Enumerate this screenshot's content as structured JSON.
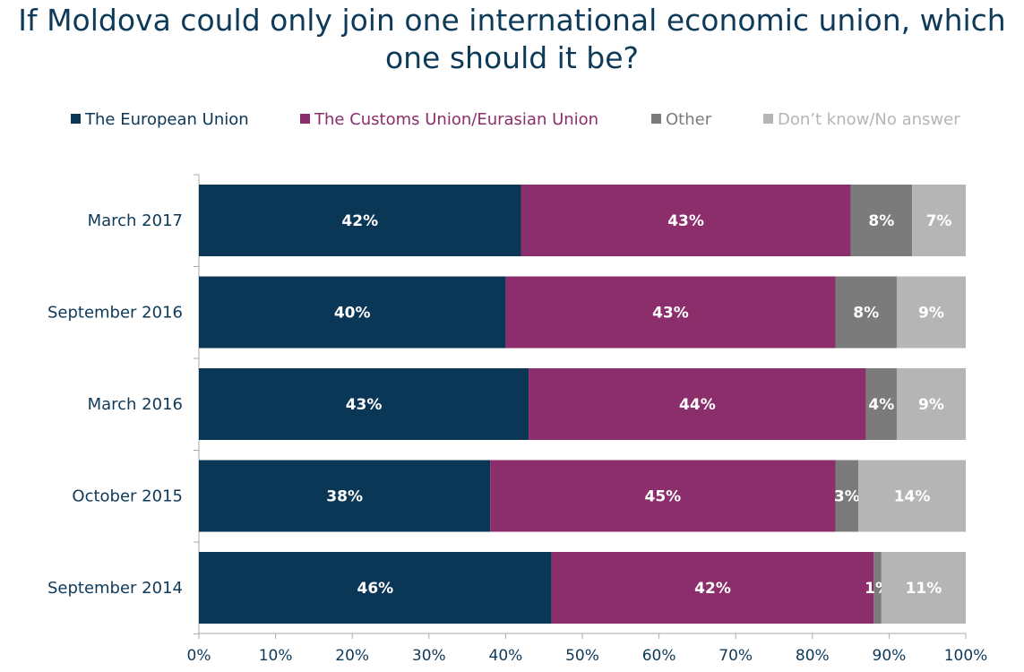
{
  "chart_data": {
    "type": "bar",
    "orientation": "horizontal",
    "stacked": true,
    "title": "If Moldova could only join one international economic union, which one should it be?",
    "categories": [
      "March 2017",
      "September 2016",
      "March 2016",
      "October 2015",
      "September 2014"
    ],
    "series": [
      {
        "name": "The European Union",
        "color": "#0b3756",
        "legend_text_color": "#0b3756",
        "values": [
          42,
          40,
          43,
          38,
          46
        ],
        "labels": [
          "42%",
          "40%",
          "43%",
          "38%",
          "46%"
        ]
      },
      {
        "name": "The Customs Union/Eurasian Union",
        "color": "#8b2e6b",
        "legend_text_color": "#8b2e6b",
        "values": [
          43,
          43,
          44,
          45,
          42
        ],
        "labels": [
          "43%",
          "43%",
          "44%",
          "45%",
          "42%"
        ]
      },
      {
        "name": "Other",
        "color": "#7b7b7b",
        "legend_text_color": "#7b7b7b",
        "values": [
          8,
          8,
          4,
          3,
          1
        ],
        "labels": [
          "8%",
          "8%",
          "4%",
          "3%",
          "1%"
        ]
      },
      {
        "name": "Don’t know/No answer",
        "color": "#b5b5b5",
        "legend_text_color": "#b5b5b5",
        "values": [
          7,
          9,
          9,
          14,
          11
        ],
        "labels": [
          "7%",
          "9%",
          "9%",
          "14%",
          "11%"
        ]
      }
    ],
    "xlim": [
      0,
      100
    ],
    "x_ticks": [
      0,
      10,
      20,
      30,
      40,
      50,
      60,
      70,
      80,
      90,
      100
    ],
    "x_tick_labels": [
      "0%",
      "10%",
      "20%",
      "30%",
      "40%",
      "50%",
      "60%",
      "70%",
      "80%",
      "90%",
      "100%"
    ],
    "legend_position": "top",
    "grid": false
  },
  "colors": {
    "title": "#0e3a5a",
    "axis": "#aaaaaa",
    "category_label": "#0e3a5a"
  }
}
